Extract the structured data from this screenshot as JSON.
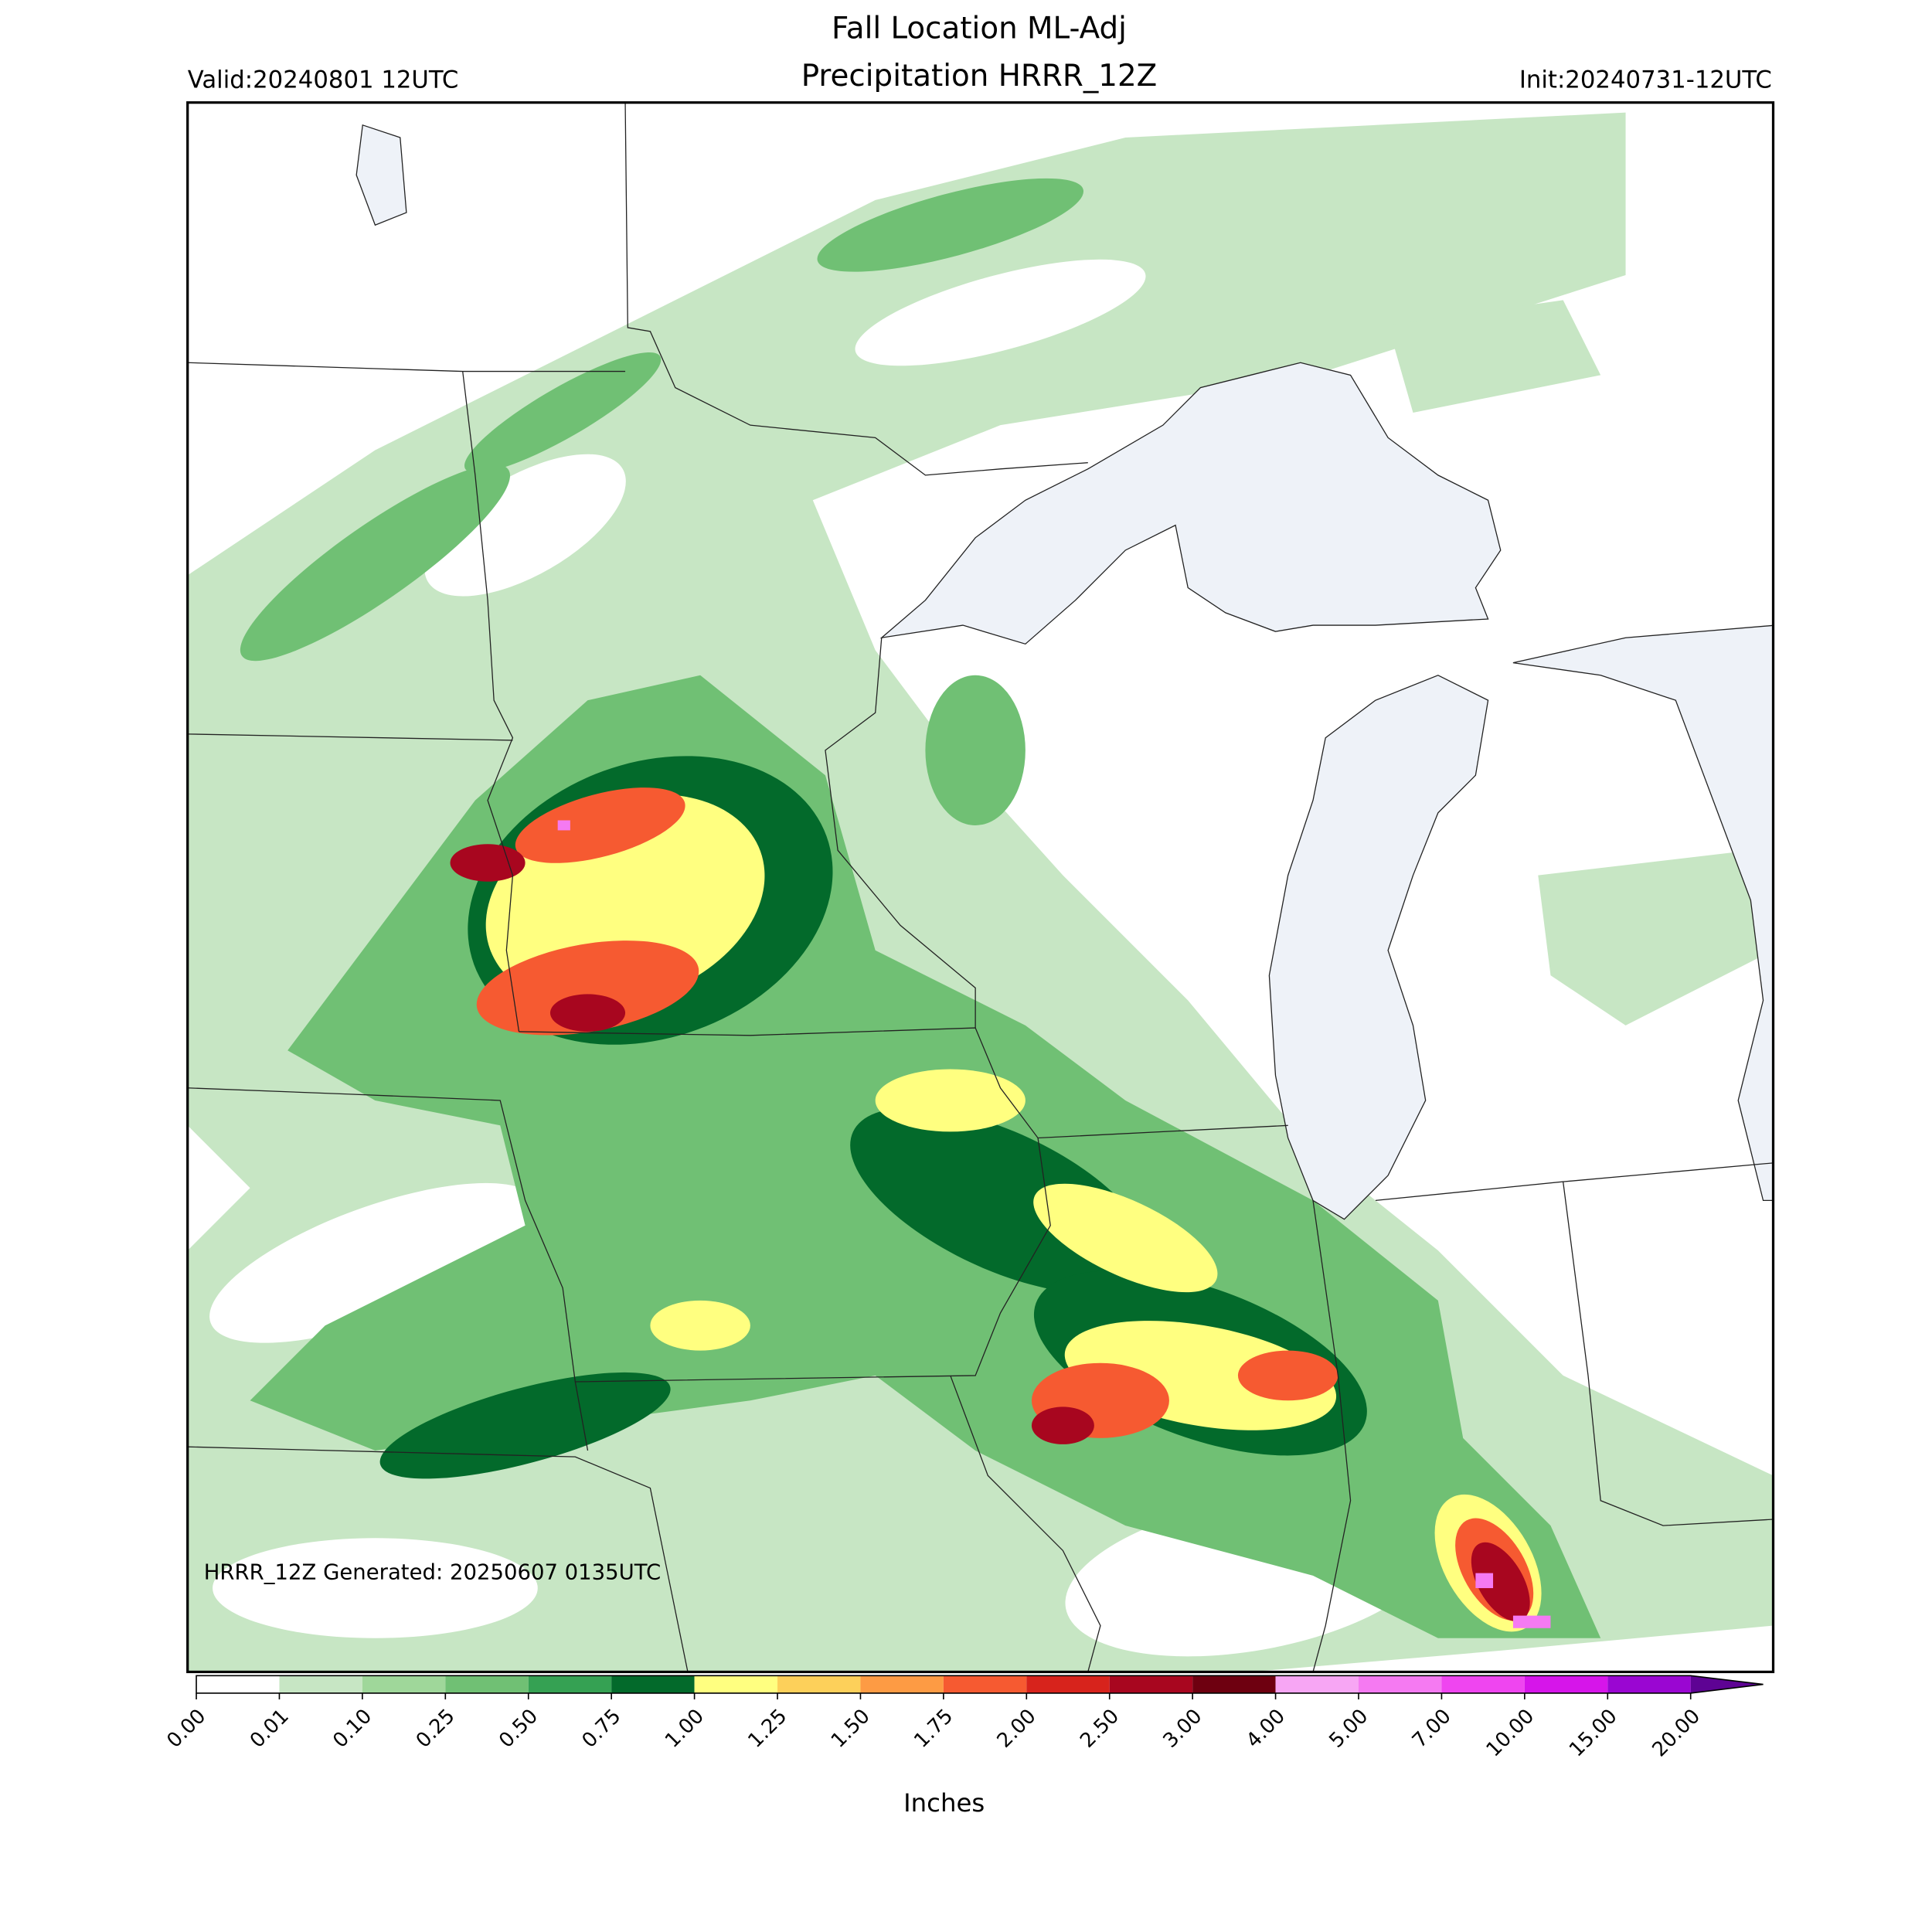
{
  "header": {
    "title": [
      "Fall Location ML-Adj",
      "Precipitation HRRR_12Z"
    ],
    "valid": "Valid:20240801 12UTC",
    "init": "Init:20240731-12UTC"
  },
  "annotation": "HRRR_12Z Generated: 20250607 0135UTC",
  "colorbar": {
    "label": "Inches",
    "ticks": [
      "0.00",
      "0.01",
      "0.10",
      "0.25",
      "0.50",
      "0.75",
      "1.00",
      "1.25",
      "1.50",
      "1.75",
      "2.00",
      "2.50",
      "3.00",
      "4.00",
      "5.00",
      "7.00",
      "10.00",
      "15.00",
      "20.00"
    ],
    "colors": [
      "#ffffff",
      "#c7e6c4",
      "#9fd79a",
      "#70c074",
      "#35a153",
      "#036a2b",
      "#ffff80",
      "#fdd05a",
      "#fd9b44",
      "#f65a31",
      "#d7231c",
      "#a8061f",
      "#6e0010",
      "#f7a6f4",
      "#f57af2",
      "#ef45f0",
      "#d615ea",
      "#9a06d2",
      "#5e0394"
    ]
  }
}
